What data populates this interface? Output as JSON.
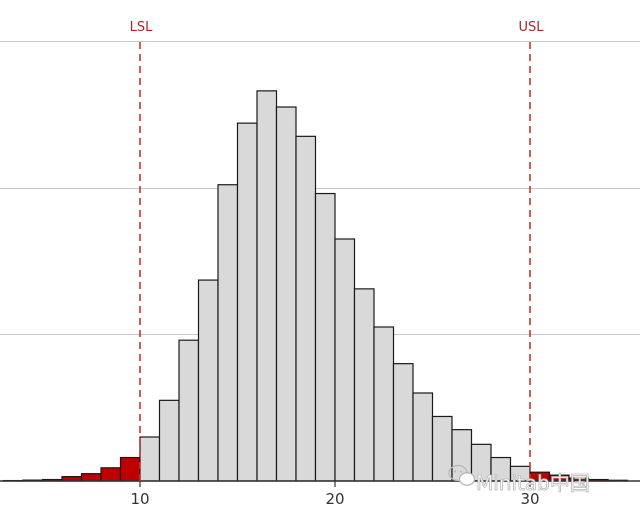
{
  "chart_data": {
    "type": "bar",
    "x_ticks": [
      10,
      20,
      30
    ],
    "xlim": [
      3,
      35.5
    ],
    "ylim": [
      0,
      300
    ],
    "y_gridlines": [
      100,
      200,
      300
    ],
    "grid": true,
    "bin_width": 1,
    "bins": [
      {
        "x": 3,
        "value": 0.3
      },
      {
        "x": 4,
        "value": 0.6
      },
      {
        "x": 5,
        "value": 1
      },
      {
        "x": 6,
        "value": 3
      },
      {
        "x": 7,
        "value": 5
      },
      {
        "x": 8,
        "value": 9
      },
      {
        "x": 9,
        "value": 16
      },
      {
        "x": 10,
        "value": 30
      },
      {
        "x": 11,
        "value": 55
      },
      {
        "x": 12,
        "value": 96
      },
      {
        "x": 13,
        "value": 137
      },
      {
        "x": 14,
        "value": 202
      },
      {
        "x": 15,
        "value": 244
      },
      {
        "x": 16,
        "value": 266
      },
      {
        "x": 17,
        "value": 255
      },
      {
        "x": 18,
        "value": 235
      },
      {
        "x": 19,
        "value": 196
      },
      {
        "x": 20,
        "value": 165
      },
      {
        "x": 21,
        "value": 131
      },
      {
        "x": 22,
        "value": 105
      },
      {
        "x": 23,
        "value": 80
      },
      {
        "x": 24,
        "value": 60
      },
      {
        "x": 25,
        "value": 44
      },
      {
        "x": 26,
        "value": 35
      },
      {
        "x": 27,
        "value": 25
      },
      {
        "x": 28,
        "value": 16
      },
      {
        "x": 29,
        "value": 10
      },
      {
        "x": 30,
        "value": 6
      },
      {
        "x": 31,
        "value": 4
      },
      {
        "x": 32,
        "value": 2
      },
      {
        "x": 33,
        "value": 1
      },
      {
        "x": 34,
        "value": 0.5
      }
    ],
    "spec_limits": [
      {
        "label": "LSL",
        "value": 10
      },
      {
        "label": "USL",
        "value": 30
      }
    ],
    "colors": {
      "in_spec_fill": "#d9d9d9",
      "out_of_spec_fill": "#c00000",
      "bar_stroke": "#1a1a1a",
      "spec_line": "#c0392b",
      "gridline": "#c8c8c8"
    }
  },
  "watermark": {
    "text": "Minitab中国",
    "icon": "wechat-icon"
  }
}
